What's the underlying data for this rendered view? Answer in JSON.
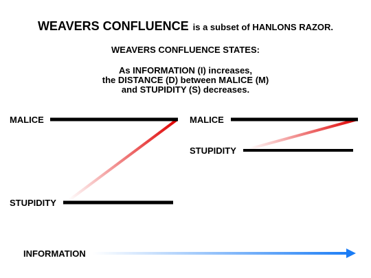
{
  "header": {
    "title_emphasis": "WEAVERS CONFLUENCE",
    "title_rest": "is a subset of HANLONS RAZOR.",
    "subtitle": "WEAVERS CONFLUENCE STATES:",
    "statement": [
      "As INFORMATION (I) increases,",
      "the DISTANCE (D) between MALICE (M)",
      "and STUPIDITY (S) decreases."
    ]
  },
  "diagrams": [
    {
      "top_label": "MALICE",
      "bottom_label": "STUPIDITY"
    },
    {
      "top_label": "MALICE",
      "bottom_label": "STUPIDITY"
    }
  ],
  "axis": {
    "label": "INFORMATION"
  }
}
